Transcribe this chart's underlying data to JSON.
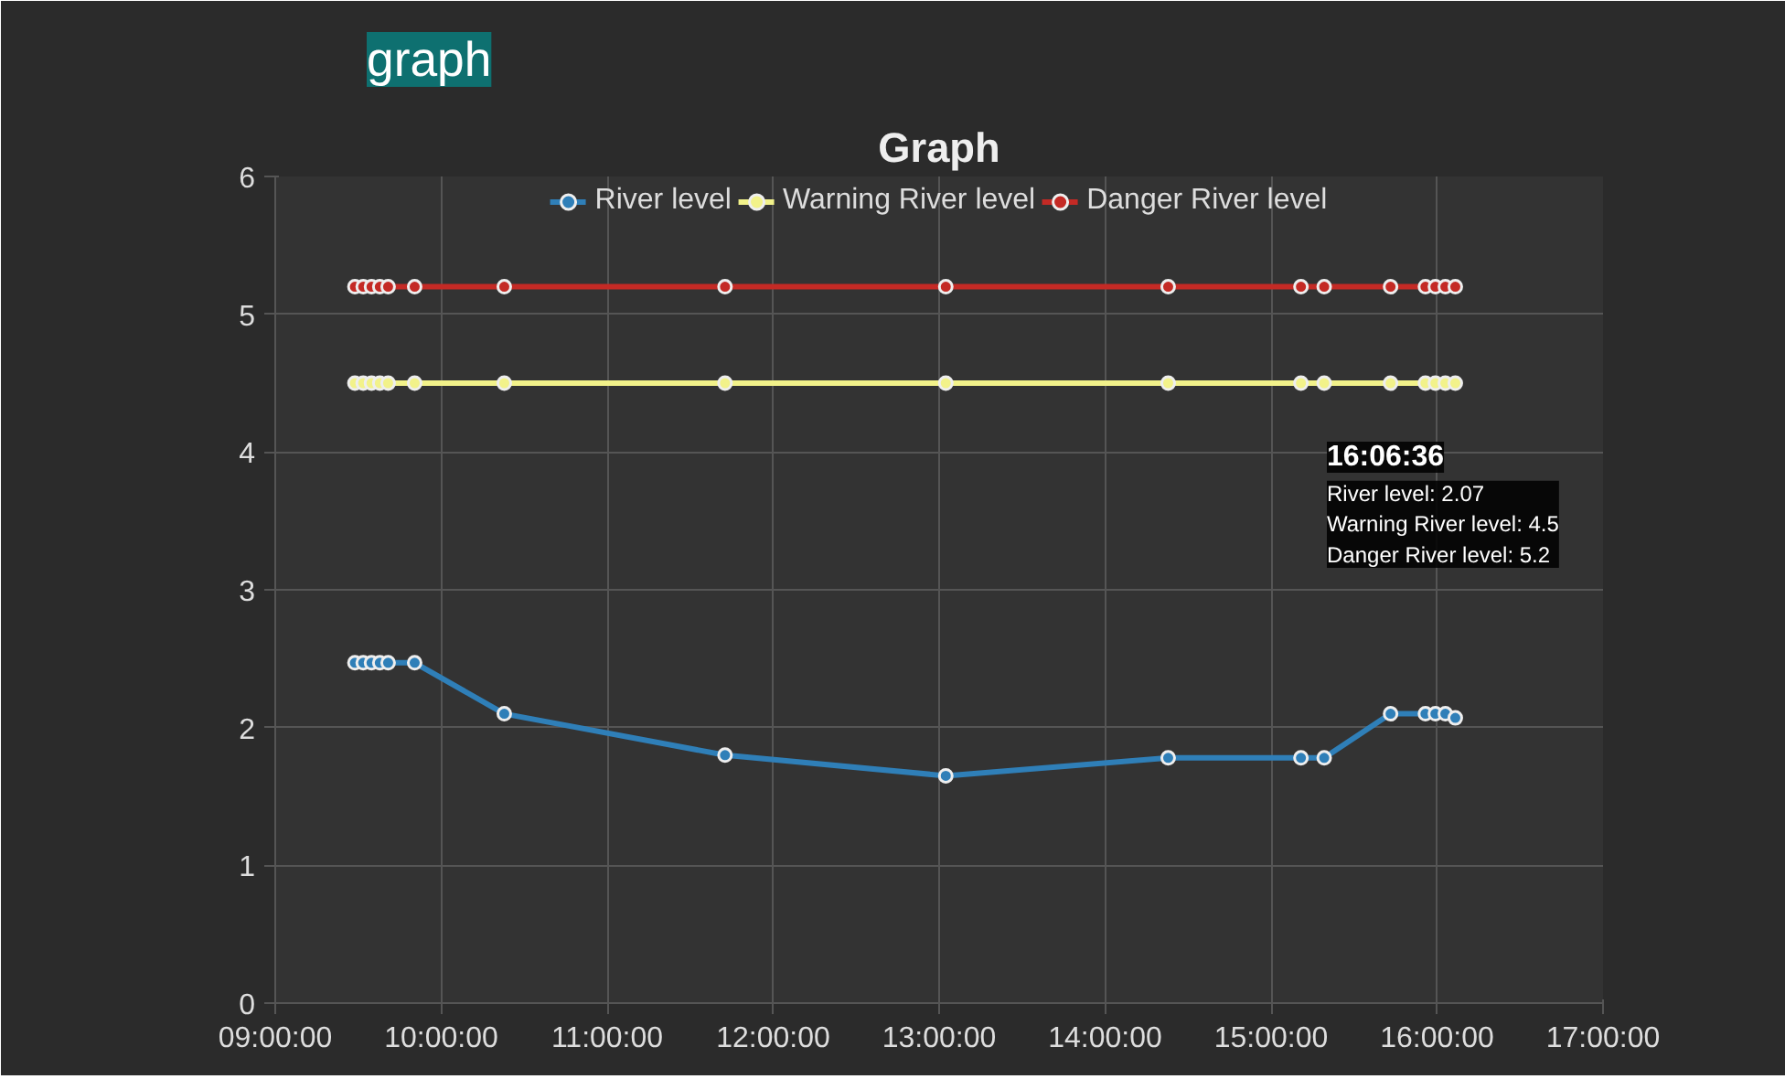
{
  "chart_data": {
    "type": "line",
    "title": "Graph",
    "x": [
      9.48,
      9.53,
      9.58,
      9.63,
      9.68,
      9.84,
      10.38,
      11.71,
      13.04,
      14.38,
      15.18,
      15.32,
      15.72,
      15.93,
      15.99,
      16.05,
      16.11
    ],
    "series": [
      {
        "name": "River level",
        "color": "#2f7fb8",
        "values": [
          2.47,
          2.47,
          2.47,
          2.47,
          2.47,
          2.47,
          2.1,
          1.8,
          1.65,
          1.78,
          1.78,
          1.78,
          2.1,
          2.1,
          2.1,
          2.1,
          2.07
        ]
      },
      {
        "name": "Warning River level",
        "color": "#f2f28a",
        "values": [
          4.5,
          4.5,
          4.5,
          4.5,
          4.5,
          4.5,
          4.5,
          4.5,
          4.5,
          4.5,
          4.5,
          4.5,
          4.5,
          4.5,
          4.5,
          4.5,
          4.5
        ]
      },
      {
        "name": "Danger River level",
        "color": "#c42a25",
        "values": [
          5.2,
          5.2,
          5.2,
          5.2,
          5.2,
          5.2,
          5.2,
          5.2,
          5.2,
          5.2,
          5.2,
          5.2,
          5.2,
          5.2,
          5.2,
          5.2,
          5.2
        ]
      }
    ],
    "xlim": [
      9,
      17
    ],
    "xticks": [
      {
        "value": 9,
        "label": "09:00:00"
      },
      {
        "value": 10,
        "label": "10:00:00"
      },
      {
        "value": 11,
        "label": "11:00:00"
      },
      {
        "value": 12,
        "label": "12:00:00"
      },
      {
        "value": 13,
        "label": "13:00:00"
      },
      {
        "value": 14,
        "label": "14:00:00"
      },
      {
        "value": 15,
        "label": "15:00:00"
      },
      {
        "value": 16,
        "label": "16:00:00"
      },
      {
        "value": 17,
        "label": "17:00:00"
      }
    ],
    "ylim": [
      0,
      6
    ],
    "yticks": [
      0,
      1,
      2,
      3,
      4,
      5,
      6
    ],
    "annotations": [
      "graph",
      "16:06:36",
      "River level: 2.07",
      "Warning River level: 4.5",
      "Danger River level: 5.2"
    ],
    "grid": true,
    "legend": "top",
    "marker": "circle",
    "line_style": "solid"
  }
}
